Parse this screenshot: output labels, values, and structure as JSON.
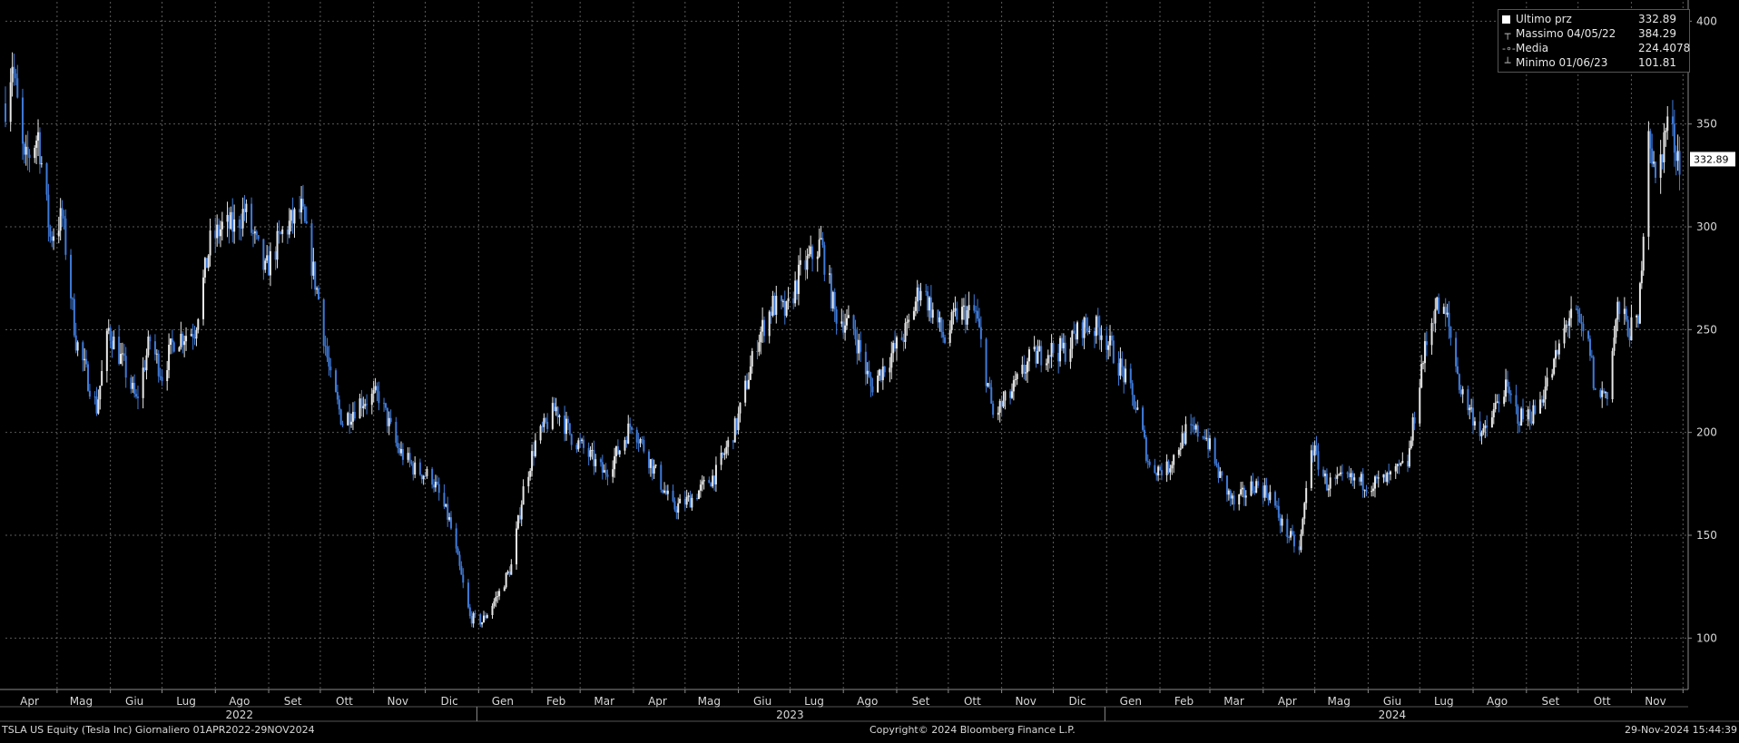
{
  "chart_data": {
    "type": "candlestick",
    "symbol": "TSLA US Equity (Tesla Inc)",
    "frequency": "Giornaliero",
    "period": "01APR2022-29NOV2024",
    "ylim": [
      75,
      405
    ],
    "y_ticks": [
      100,
      150,
      200,
      250,
      300,
      350,
      400
    ],
    "grid": true,
    "up_color": "#e8e8e8",
    "down_color": "#3f7ad9",
    "month_ticks": [
      {
        "label": "Apr",
        "date": "2022-04-15"
      },
      {
        "label": "Mag",
        "date": "2022-05-15"
      },
      {
        "label": "Giu",
        "date": "2022-06-15"
      },
      {
        "label": "Lug",
        "date": "2022-07-15"
      },
      {
        "label": "Ago",
        "date": "2022-08-15"
      },
      {
        "label": "Set",
        "date": "2022-09-15"
      },
      {
        "label": "Ott",
        "date": "2022-10-15"
      },
      {
        "label": "Nov",
        "date": "2022-11-15"
      },
      {
        "label": "Dic",
        "date": "2022-12-15"
      },
      {
        "label": "Gen",
        "date": "2023-01-15"
      },
      {
        "label": "Feb",
        "date": "2023-02-15"
      },
      {
        "label": "Mar",
        "date": "2023-03-15"
      },
      {
        "label": "Apr",
        "date": "2023-04-15"
      },
      {
        "label": "Mag",
        "date": "2023-05-15"
      },
      {
        "label": "Giu",
        "date": "2023-06-15"
      },
      {
        "label": "Lug",
        "date": "2023-07-15"
      },
      {
        "label": "Ago",
        "date": "2023-08-15"
      },
      {
        "label": "Set",
        "date": "2023-09-15"
      },
      {
        "label": "Ott",
        "date": "2023-10-15"
      },
      {
        "label": "Nov",
        "date": "2023-11-15"
      },
      {
        "label": "Dic",
        "date": "2023-12-15"
      },
      {
        "label": "Gen",
        "date": "2024-01-15"
      },
      {
        "label": "Feb",
        "date": "2024-02-15"
      },
      {
        "label": "Mar",
        "date": "2024-03-15"
      },
      {
        "label": "Apr",
        "date": "2024-04-15"
      },
      {
        "label": "Mag",
        "date": "2024-05-15"
      },
      {
        "label": "Giu",
        "date": "2024-06-15"
      },
      {
        "label": "Lug",
        "date": "2024-07-15"
      },
      {
        "label": "Ago",
        "date": "2024-08-15"
      },
      {
        "label": "Set",
        "date": "2024-09-15"
      },
      {
        "label": "Ott",
        "date": "2024-10-15"
      },
      {
        "label": "Nov",
        "date": "2024-11-15"
      }
    ],
    "year_labels": [
      {
        "label": "2022",
        "date": "2022-08-15"
      },
      {
        "label": "2023",
        "date": "2023-07-01"
      },
      {
        "label": "2024",
        "date": "2024-06-15"
      }
    ],
    "year_separators": [
      "2022-12-31",
      "2023-12-31"
    ],
    "price_path": [
      [
        "2022-04-01",
        360
      ],
      [
        "2022-04-05",
        381
      ],
      [
        "2022-04-12",
        330
      ],
      [
        "2022-04-20",
        345
      ],
      [
        "2022-04-27",
        295
      ],
      [
        "2022-05-04",
        305
      ],
      [
        "2022-05-12",
        245
      ],
      [
        "2022-05-24",
        212
      ],
      [
        "2022-05-31",
        250
      ],
      [
        "2022-06-09",
        232
      ],
      [
        "2022-06-16",
        215
      ],
      [
        "2022-06-24",
        245
      ],
      [
        "2022-07-01",
        228
      ],
      [
        "2022-07-08",
        245
      ],
      [
        "2022-07-20",
        250
      ],
      [
        "2022-07-29",
        292
      ],
      [
        "2022-08-05",
        300
      ],
      [
        "2022-08-12",
        300
      ],
      [
        "2022-08-18",
        308
      ],
      [
        "2022-08-30",
        278
      ],
      [
        "2022-09-09",
        297
      ],
      [
        "2022-09-20",
        308
      ],
      [
        "2022-09-30",
        265
      ],
      [
        "2022-10-07",
        225
      ],
      [
        "2022-10-14",
        205
      ],
      [
        "2022-10-24",
        215
      ],
      [
        "2022-11-04",
        218
      ],
      [
        "2022-11-15",
        192
      ],
      [
        "2022-11-25",
        182
      ],
      [
        "2022-12-05",
        178
      ],
      [
        "2022-12-15",
        157
      ],
      [
        "2022-12-27",
        110
      ],
      [
        "2023-01-03",
        108
      ],
      [
        "2023-01-13",
        122
      ],
      [
        "2023-01-20",
        135
      ],
      [
        "2023-01-27",
        172
      ],
      [
        "2023-02-03",
        195
      ],
      [
        "2023-02-15",
        212
      ],
      [
        "2023-02-24",
        198
      ],
      [
        "2023-03-02",
        193
      ],
      [
        "2023-03-15",
        180
      ],
      [
        "2023-03-24",
        192
      ],
      [
        "2023-03-31",
        205
      ],
      [
        "2023-04-13",
        182
      ],
      [
        "2023-04-24",
        163
      ],
      [
        "2023-05-05",
        168
      ],
      [
        "2023-05-19",
        180
      ],
      [
        "2023-05-31",
        204
      ],
      [
        "2023-06-12",
        245
      ],
      [
        "2023-06-21",
        262
      ],
      [
        "2023-06-29",
        258
      ],
      [
        "2023-07-07",
        278
      ],
      [
        "2023-07-19",
        292
      ],
      [
        "2023-07-27",
        258
      ],
      [
        "2023-08-07",
        250
      ],
      [
        "2023-08-17",
        222
      ],
      [
        "2023-08-29",
        238
      ],
      [
        "2023-09-07",
        250
      ],
      [
        "2023-09-15",
        272
      ],
      [
        "2023-09-29",
        245
      ],
      [
        "2023-10-06",
        258
      ],
      [
        "2023-10-17",
        258
      ],
      [
        "2023-10-27",
        208
      ],
      [
        "2023-11-06",
        218
      ],
      [
        "2023-11-17",
        235
      ],
      [
        "2023-11-28",
        240
      ],
      [
        "2023-12-08",
        240
      ],
      [
        "2023-12-18",
        252
      ],
      [
        "2023-12-29",
        250
      ],
      [
        "2024-01-10",
        230
      ],
      [
        "2024-01-19",
        210
      ],
      [
        "2024-01-26",
        183
      ],
      [
        "2024-02-05",
        182
      ],
      [
        "2024-02-16",
        200
      ],
      [
        "2024-02-27",
        200
      ],
      [
        "2024-03-06",
        180
      ],
      [
        "2024-03-15",
        165
      ],
      [
        "2024-03-27",
        175
      ],
      [
        "2024-04-05",
        170
      ],
      [
        "2024-04-12",
        155
      ],
      [
        "2024-04-22",
        142
      ],
      [
        "2024-04-29",
        194
      ],
      [
        "2024-05-08",
        175
      ],
      [
        "2024-05-20",
        177
      ],
      [
        "2024-06-03",
        175
      ],
      [
        "2024-06-12",
        177
      ],
      [
        "2024-06-24",
        185
      ],
      [
        "2024-07-02",
        232
      ],
      [
        "2024-07-10",
        262
      ],
      [
        "2024-07-17",
        255
      ],
      [
        "2024-07-25",
        220
      ],
      [
        "2024-08-07",
        198
      ],
      [
        "2024-08-19",
        222
      ],
      [
        "2024-08-28",
        207
      ],
      [
        "2024-09-06",
        210
      ],
      [
        "2024-09-16",
        230
      ],
      [
        "2024-09-27",
        260
      ],
      [
        "2024-10-08",
        240
      ],
      [
        "2024-10-11",
        218
      ],
      [
        "2024-10-18",
        220
      ],
      [
        "2024-10-24",
        260
      ],
      [
        "2024-10-31",
        250
      ],
      [
        "2024-11-05",
        252
      ],
      [
        "2024-11-11",
        350
      ],
      [
        "2024-11-15",
        320
      ],
      [
        "2024-11-22",
        352
      ],
      [
        "2024-11-29",
        332.89
      ]
    ],
    "legend": {
      "rows": [
        {
          "label": "Ultimo prz",
          "value": "332.89",
          "marker": "square"
        },
        {
          "label": "Massimo 04/05/22",
          "value": "384.29",
          "marker": "top-tick"
        },
        {
          "label": "Media",
          "value": "224.4078",
          "marker": "dot-line"
        },
        {
          "label": "Minimo 01/06/23",
          "value": "101.81",
          "marker": "bottom-tick"
        }
      ]
    },
    "last_price": 332.89,
    "last_price_label": "332.89"
  },
  "footer": {
    "left": "TSLA US Equity (Tesla Inc)  Giornaliero 01APR2022-29NOV2024",
    "center": "Copyright© 2024 Bloomberg Finance L.P.",
    "right": "29-Nov-2024 15:44:39"
  },
  "legend_markers": {
    "top": "┬",
    "mid": "-∘-",
    "bottom": "┴"
  }
}
